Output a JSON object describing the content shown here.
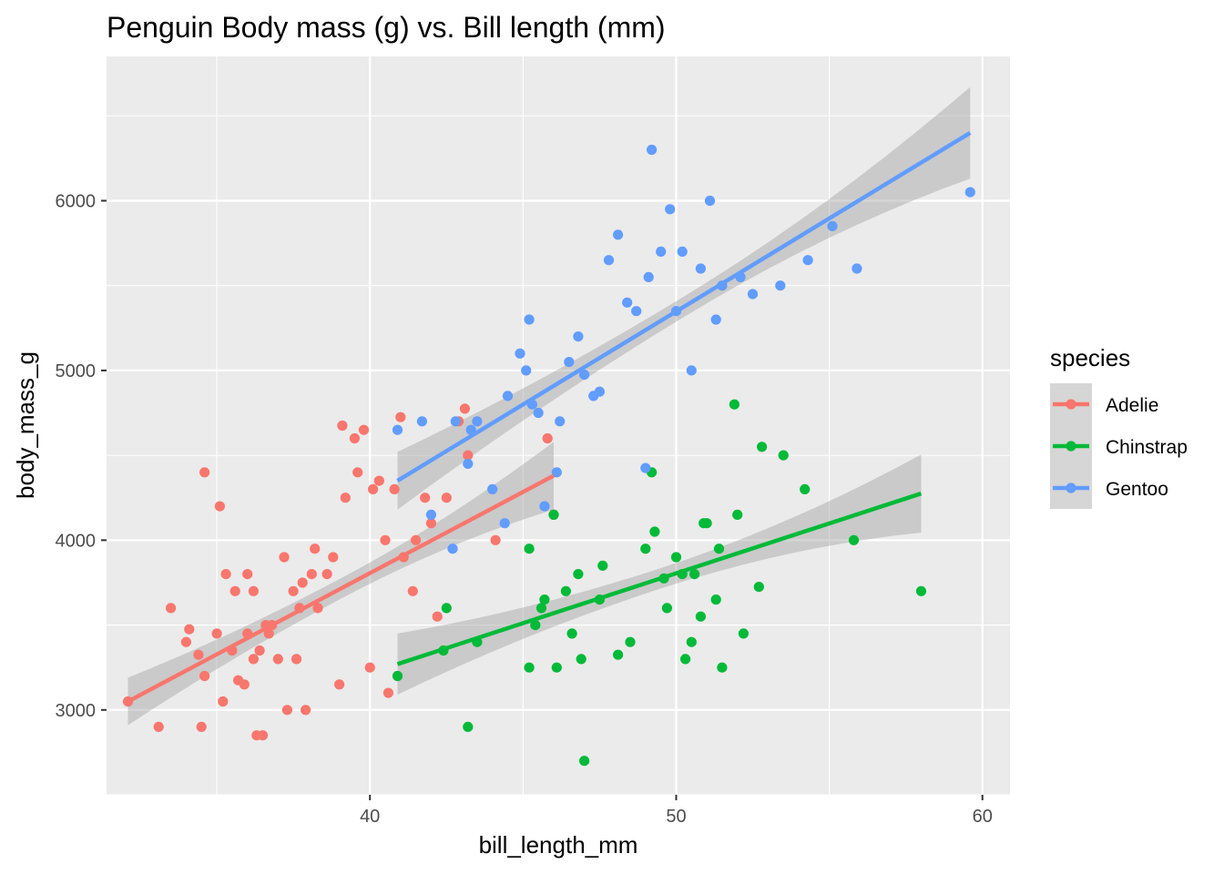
{
  "chart_data": {
    "type": "scatter",
    "title": "Penguin Body mass (g) vs. Bill length (mm)",
    "xlabel": "bill_length_mm",
    "ylabel": "body_mass_g",
    "xlim": [
      31.4,
      60.9
    ],
    "ylim": [
      2500,
      6850
    ],
    "xticks": [
      40,
      50,
      60
    ],
    "yticks": [
      3000,
      4000,
      5000,
      6000
    ],
    "grid": true,
    "legend": {
      "title": "species",
      "position": "right"
    },
    "series": [
      {
        "name": "Adelie",
        "color": "#F8766D",
        "fit": {
          "x": [
            32.1,
            46.0
          ],
          "y": [
            3050,
            4380
          ],
          "se": [
            140,
            200
          ]
        },
        "points": [
          [
            32.1,
            3050
          ],
          [
            33.1,
            2900
          ],
          [
            33.5,
            3600
          ],
          [
            34.0,
            3400
          ],
          [
            34.1,
            3475
          ],
          [
            34.4,
            3325
          ],
          [
            34.5,
            2900
          ],
          [
            34.6,
            3200
          ],
          [
            34.6,
            4400
          ],
          [
            35.0,
            3450
          ],
          [
            35.1,
            4200
          ],
          [
            35.2,
            3050
          ],
          [
            35.3,
            3800
          ],
          [
            35.5,
            3350
          ],
          [
            35.6,
            3700
          ],
          [
            35.7,
            3175
          ],
          [
            35.9,
            3150
          ],
          [
            36.0,
            3800
          ],
          [
            36.0,
            3450
          ],
          [
            36.2,
            3300
          ],
          [
            36.2,
            3700
          ],
          [
            36.3,
            2850
          ],
          [
            36.4,
            3350
          ],
          [
            36.5,
            2850
          ],
          [
            36.6,
            3500
          ],
          [
            36.7,
            3450
          ],
          [
            36.8,
            3500
          ],
          [
            37.0,
            3300
          ],
          [
            37.2,
            3900
          ],
          [
            37.3,
            3000
          ],
          [
            37.5,
            3700
          ],
          [
            37.6,
            3300
          ],
          [
            37.7,
            3600
          ],
          [
            37.8,
            3750
          ],
          [
            37.9,
            3000
          ],
          [
            38.1,
            3800
          ],
          [
            38.2,
            3950
          ],
          [
            38.3,
            3600
          ],
          [
            38.6,
            3800
          ],
          [
            38.8,
            3900
          ],
          [
            39.0,
            3150
          ],
          [
            39.1,
            4675
          ],
          [
            39.2,
            4250
          ],
          [
            39.5,
            4600
          ],
          [
            39.6,
            4400
          ],
          [
            39.8,
            4650
          ],
          [
            40.0,
            3250
          ],
          [
            40.1,
            4300
          ],
          [
            40.3,
            4350
          ],
          [
            40.5,
            4000
          ],
          [
            40.6,
            3100
          ],
          [
            40.8,
            4300
          ],
          [
            41.0,
            4725
          ],
          [
            41.1,
            3900
          ],
          [
            41.4,
            3700
          ],
          [
            41.5,
            4000
          ],
          [
            41.8,
            4250
          ],
          [
            42.0,
            4100
          ],
          [
            42.2,
            3550
          ],
          [
            42.5,
            4250
          ],
          [
            42.9,
            4700
          ],
          [
            43.1,
            4775
          ],
          [
            43.2,
            4500
          ],
          [
            44.1,
            4000
          ],
          [
            45.8,
            4600
          ],
          [
            46.0,
            4150
          ]
        ]
      },
      {
        "name": "Chinstrap",
        "color": "#00BA38",
        "fit": {
          "x": [
            40.9,
            58.0
          ],
          "y": [
            3270,
            4275
          ],
          "se": [
            180,
            230
          ]
        },
        "points": [
          [
            40.9,
            3200
          ],
          [
            42.4,
            3350
          ],
          [
            42.5,
            3600
          ],
          [
            43.2,
            2900
          ],
          [
            43.5,
            3400
          ],
          [
            45.2,
            3250
          ],
          [
            45.2,
            3950
          ],
          [
            45.4,
            3500
          ],
          [
            45.6,
            3600
          ],
          [
            45.7,
            3650
          ],
          [
            46.0,
            4150
          ],
          [
            46.1,
            3250
          ],
          [
            46.4,
            3700
          ],
          [
            46.6,
            3450
          ],
          [
            46.8,
            3800
          ],
          [
            46.9,
            3300
          ],
          [
            47.0,
            2700
          ],
          [
            47.5,
            3650
          ],
          [
            47.6,
            3850
          ],
          [
            48.1,
            3325
          ],
          [
            48.5,
            3400
          ],
          [
            49.0,
            3950
          ],
          [
            49.2,
            4400
          ],
          [
            49.3,
            4050
          ],
          [
            49.6,
            3775
          ],
          [
            49.7,
            3600
          ],
          [
            50.0,
            3900
          ],
          [
            50.2,
            3800
          ],
          [
            50.3,
            3300
          ],
          [
            50.5,
            3400
          ],
          [
            50.6,
            3800
          ],
          [
            50.8,
            3550
          ],
          [
            50.9,
            4100
          ],
          [
            51.0,
            4100
          ],
          [
            51.3,
            3650
          ],
          [
            51.4,
            3950
          ],
          [
            51.5,
            3250
          ],
          [
            51.9,
            4800
          ],
          [
            52.0,
            4150
          ],
          [
            52.2,
            3450
          ],
          [
            52.7,
            3725
          ],
          [
            52.8,
            4550
          ],
          [
            53.5,
            4500
          ],
          [
            54.2,
            4300
          ],
          [
            55.8,
            4000
          ],
          [
            58.0,
            3700
          ]
        ]
      },
      {
        "name": "Gentoo",
        "color": "#619CFF",
        "fit": {
          "x": [
            40.9,
            59.6
          ],
          "y": [
            4350,
            6400
          ],
          "se": [
            170,
            270
          ]
        },
        "points": [
          [
            40.9,
            4650
          ],
          [
            41.7,
            4700
          ],
          [
            42.0,
            4150
          ],
          [
            42.7,
            3950
          ],
          [
            42.8,
            4700
          ],
          [
            43.2,
            4450
          ],
          [
            43.3,
            4650
          ],
          [
            43.5,
            4700
          ],
          [
            44.0,
            4300
          ],
          [
            44.4,
            4100
          ],
          [
            44.5,
            4850
          ],
          [
            44.9,
            5100
          ],
          [
            45.1,
            5000
          ],
          [
            45.2,
            5300
          ],
          [
            45.3,
            4800
          ],
          [
            45.5,
            4750
          ],
          [
            45.7,
            4200
          ],
          [
            46.1,
            4400
          ],
          [
            46.2,
            4700
          ],
          [
            46.5,
            5050
          ],
          [
            46.8,
            5200
          ],
          [
            47.0,
            4975
          ],
          [
            47.3,
            4850
          ],
          [
            47.5,
            4875
          ],
          [
            47.8,
            5650
          ],
          [
            48.1,
            5800
          ],
          [
            48.4,
            5400
          ],
          [
            48.7,
            5350
          ],
          [
            49.0,
            4425
          ],
          [
            49.1,
            5550
          ],
          [
            49.2,
            6300
          ],
          [
            49.5,
            5700
          ],
          [
            49.8,
            5950
          ],
          [
            50.0,
            5350
          ],
          [
            50.2,
            5700
          ],
          [
            50.5,
            5000
          ],
          [
            50.8,
            5600
          ],
          [
            51.1,
            6000
          ],
          [
            51.3,
            5300
          ],
          [
            51.5,
            5500
          ],
          [
            52.1,
            5550
          ],
          [
            52.5,
            5450
          ],
          [
            53.4,
            5500
          ],
          [
            54.3,
            5650
          ],
          [
            55.1,
            5850
          ],
          [
            55.9,
            5600
          ],
          [
            59.6,
            6050
          ]
        ]
      }
    ]
  }
}
